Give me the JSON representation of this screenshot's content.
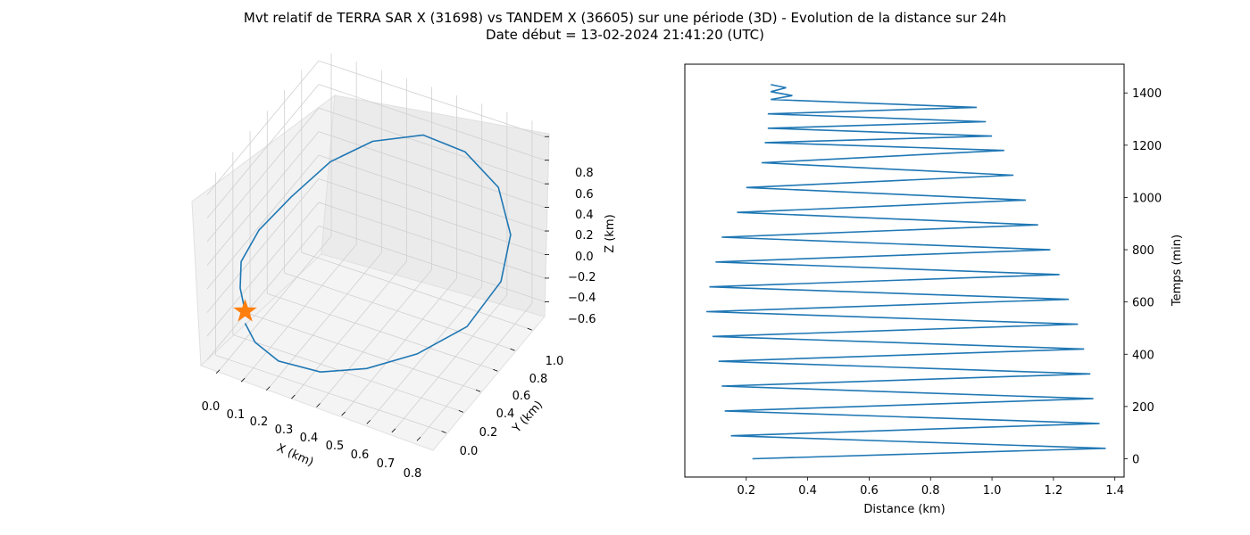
{
  "title_line1": "Mvt relatif de TERRA SAR X (31698) vs TANDEM X (36605) sur une période (3D) - Evolution de la distance sur 24h",
  "title_line2": "Date début = 13-02-2024 21:41:20 (UTC)",
  "colors": {
    "line": "#1f77b4",
    "marker": "#ff7f0e",
    "pane": "#f2f2f2",
    "grid": "#cccccc"
  },
  "chart_data": [
    {
      "type": "line3d",
      "xlabel": "X (km)",
      "ylabel": "Y (km)",
      "zlabel": "Z (km)",
      "xticks": [
        "0.0",
        "0.1",
        "0.2",
        "0.3",
        "0.4",
        "0.5",
        "0.6",
        "0.7",
        "0.8"
      ],
      "yticks": [
        "0.0",
        "0.2",
        "0.4",
        "0.6",
        "0.8",
        "1.0"
      ],
      "zticks": [
        "0.8",
        "0.6",
        "0.4",
        "0.2",
        "0.0",
        "−0.2",
        "−0.4",
        "−0.6"
      ],
      "xlim": [
        -0.05,
        0.85
      ],
      "ylim": [
        -0.1,
        1.2
      ],
      "zlim": [
        -0.65,
        0.9
      ],
      "grid": true,
      "series": [
        {
          "points": [
            [
              0.05,
              0.05,
              -0.25
            ],
            [
              0.02,
              0.08,
              -0.1
            ],
            [
              0.0,
              0.15,
              0.05
            ],
            [
              0.02,
              0.3,
              0.2
            ],
            [
              0.08,
              0.5,
              0.35
            ],
            [
              0.15,
              0.75,
              0.48
            ],
            [
              0.25,
              0.95,
              0.55
            ],
            [
              0.4,
              1.1,
              0.58
            ],
            [
              0.55,
              1.15,
              0.5
            ],
            [
              0.7,
              1.1,
              0.35
            ],
            [
              0.8,
              0.95,
              0.15
            ],
            [
              0.83,
              0.75,
              -0.05
            ],
            [
              0.78,
              0.5,
              -0.25
            ],
            [
              0.65,
              0.3,
              -0.4
            ],
            [
              0.5,
              0.15,
              -0.5
            ],
            [
              0.35,
              0.05,
              -0.55
            ],
            [
              0.2,
              0.0,
              -0.52
            ],
            [
              0.1,
              0.02,
              -0.45
            ],
            [
              0.05,
              0.05,
              -0.35
            ]
          ]
        }
      ],
      "markers": [
        {
          "symbol": "star",
          "point": [
            0.05,
            0.05,
            -0.25
          ]
        }
      ]
    },
    {
      "type": "line",
      "xlabel": "Distance (km)",
      "ylabel": "Temps (min)",
      "xticks": [
        0.2,
        0.4,
        0.6,
        0.8,
        1.0,
        1.2,
        1.4
      ],
      "yticks": [
        0,
        200,
        400,
        600,
        800,
        1000,
        1200,
        1400
      ],
      "xlim": [
        0.0,
        1.43
      ],
      "ylim": [
        -70,
        1510
      ],
      "grid": false,
      "series": [
        {
          "points": [
            [
              0.22,
              0
            ],
            [
              1.37,
              40
            ],
            [
              0.15,
              88
            ],
            [
              1.35,
              135
            ],
            [
              0.13,
              183
            ],
            [
              1.33,
              230
            ],
            [
              0.12,
              278
            ],
            [
              1.32,
              325
            ],
            [
              0.11,
              373
            ],
            [
              1.3,
              420
            ],
            [
              0.09,
              468
            ],
            [
              1.28,
              515
            ],
            [
              0.07,
              563
            ],
            [
              1.25,
              610
            ],
            [
              0.08,
              658
            ],
            [
              1.22,
              705
            ],
            [
              0.1,
              753
            ],
            [
              1.19,
              800
            ],
            [
              0.12,
              848
            ],
            [
              1.15,
              895
            ],
            [
              0.17,
              943
            ],
            [
              1.11,
              990
            ],
            [
              0.2,
              1038
            ],
            [
              1.07,
              1085
            ],
            [
              0.25,
              1133
            ],
            [
              1.04,
              1180
            ],
            [
              0.26,
              1210
            ],
            [
              1.0,
              1235
            ],
            [
              0.27,
              1265
            ],
            [
              0.98,
              1290
            ],
            [
              0.27,
              1320
            ],
            [
              0.95,
              1345
            ],
            [
              0.28,
              1375
            ],
            [
              0.35,
              1390
            ],
            [
              0.28,
              1405
            ],
            [
              0.33,
              1420
            ],
            [
              0.28,
              1432
            ]
          ]
        }
      ]
    }
  ]
}
